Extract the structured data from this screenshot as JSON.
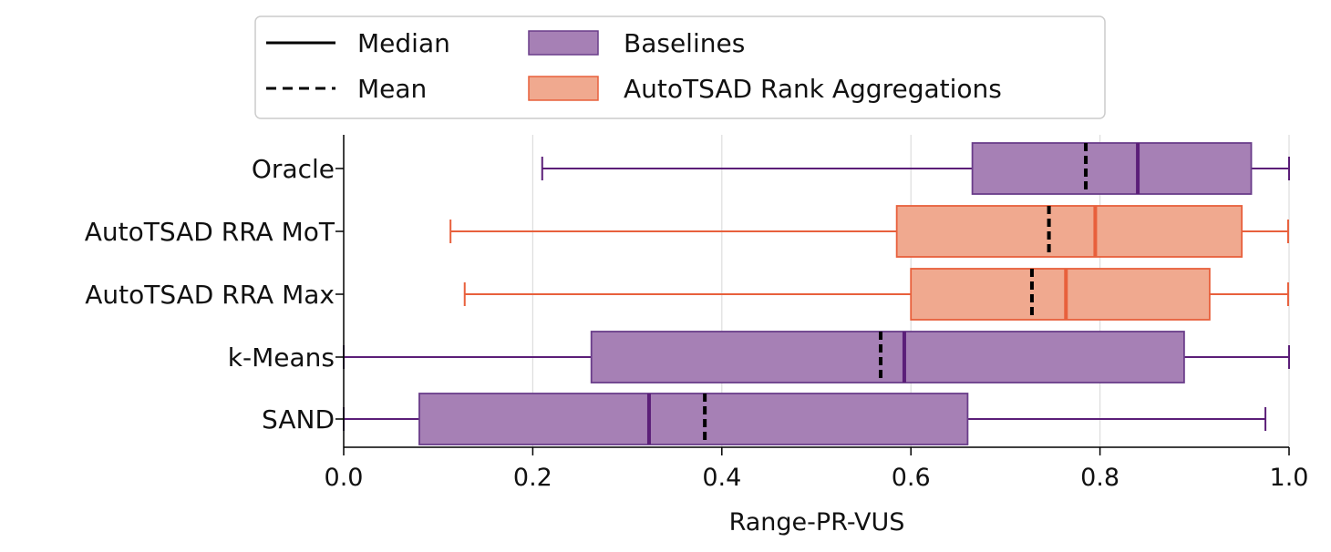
{
  "chart_data": {
    "type": "boxplot",
    "orientation": "horizontal",
    "xlabel": "Range-PR-VUS",
    "xlim": [
      0.0,
      1.0
    ],
    "xticks": [
      "0.0",
      "0.2",
      "0.4",
      "0.6",
      "0.8",
      "1.0"
    ],
    "grid": "vertical",
    "legend_position": "top-center",
    "legend": {
      "median_label": "Median",
      "mean_label": "Mean",
      "groups": [
        {
          "key": "baselines",
          "label": "Baselines",
          "fill": "#a680b5",
          "edge": "#6a3d8a",
          "whisker": "#5b1e78"
        },
        {
          "key": "autotsad",
          "label": "AutoTSAD Rank Aggregations",
          "fill": "#f0a98f",
          "edge": "#e8603c",
          "whisker": "#e8603c"
        }
      ]
    },
    "series": [
      {
        "name": "Oracle",
        "group": "baselines",
        "whisker_low": 0.21,
        "q1": 0.665,
        "median": 0.84,
        "mean": 0.785,
        "q3": 0.96,
        "whisker_high": 1.0
      },
      {
        "name": "AutoTSAD RRA  MoT",
        "group": "autotsad",
        "whisker_low": 0.113,
        "q1": 0.585,
        "median": 0.795,
        "mean": 0.746,
        "q3": 0.95,
        "whisker_high": 0.999
      },
      {
        "name": "AutoTSAD RRA  Max",
        "group": "autotsad",
        "whisker_low": 0.128,
        "q1": 0.6,
        "median": 0.764,
        "mean": 0.728,
        "q3": 0.916,
        "whisker_high": 0.999
      },
      {
        "name": "k-Means",
        "group": "baselines",
        "whisker_low": 0.0,
        "q1": 0.262,
        "median": 0.593,
        "mean": 0.568,
        "q3": 0.889,
        "whisker_high": 1.0
      },
      {
        "name": "SAND",
        "group": "baselines",
        "whisker_low": 0.0,
        "q1": 0.08,
        "median": 0.323,
        "mean": 0.382,
        "q3": 0.66,
        "whisker_high": 0.975
      }
    ]
  }
}
